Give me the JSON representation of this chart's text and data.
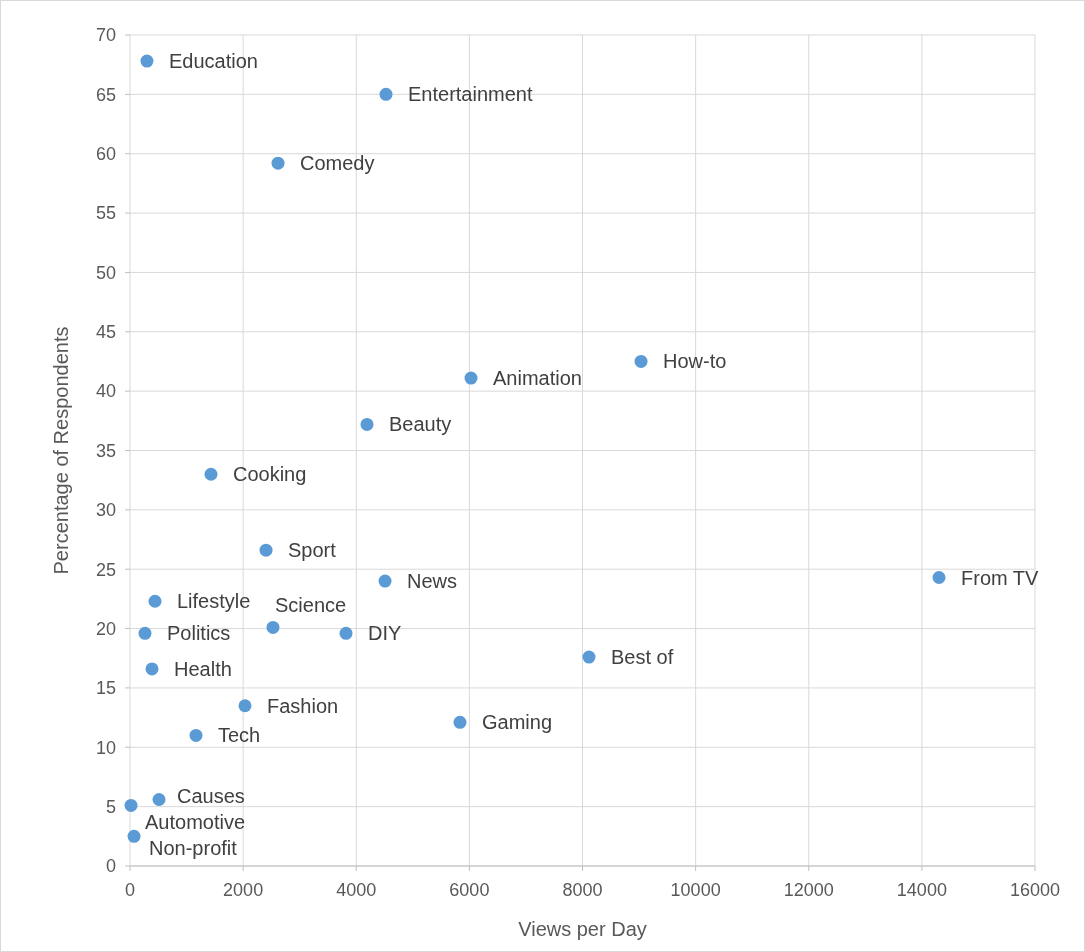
{
  "chart_data": {
    "type": "scatter",
    "xlabel": "Views per Day",
    "ylabel": "Percentage of Respondents",
    "x": [
      300,
      4526,
      2617,
      9035,
      6029,
      4190,
      1432,
      2405,
      4509,
      14303,
      442,
      2528,
      3819,
      265,
      389,
      8115,
      2033,
      5834,
      1167,
      513,
      18,
      71
    ],
    "series": [
      {
        "color": "#5b9bd5",
        "values": [
          67.8,
          65.0,
          59.2,
          42.5,
          41.1,
          37.2,
          33.0,
          26.6,
          24.0,
          24.3,
          22.3,
          20.1,
          19.6,
          19.6,
          16.6,
          17.6,
          13.5,
          12.1,
          11.0,
          5.6,
          5.1,
          2.5
        ]
      }
    ],
    "annotations": [
      {
        "text": "Education",
        "x": 300,
        "y": 67.8
      },
      {
        "text": "Entertainment",
        "x": 4526,
        "y": 65.0
      },
      {
        "text": "Comedy",
        "x": 2617,
        "y": 59.2
      },
      {
        "text": "How-to",
        "x": 9035,
        "y": 42.5
      },
      {
        "text": "Animation",
        "x": 6029,
        "y": 41.1
      },
      {
        "text": "Beauty",
        "x": 4190,
        "y": 37.2
      },
      {
        "text": "Cooking",
        "x": 1432,
        "y": 33.0
      },
      {
        "text": "Sport",
        "x": 2405,
        "y": 26.6
      },
      {
        "text": "News",
        "x": 4509,
        "y": 24.0
      },
      {
        "text": "From TV",
        "x": 14303,
        "y": 24.3
      },
      {
        "text": "Lifestyle",
        "x": 442,
        "y": 22.3
      },
      {
        "text": "Science",
        "x": 2528,
        "y": 20.1
      },
      {
        "text": "DIY",
        "x": 3819,
        "y": 19.6
      },
      {
        "text": "Politics",
        "x": 265,
        "y": 19.6
      },
      {
        "text": "Health",
        "x": 389,
        "y": 16.6
      },
      {
        "text": "Best of",
        "x": 8115,
        "y": 17.6
      },
      {
        "text": "Fashion",
        "x": 2033,
        "y": 13.5
      },
      {
        "text": "Gaming",
        "x": 5834,
        "y": 12.1
      },
      {
        "text": "Tech",
        "x": 1167,
        "y": 11.0
      },
      {
        "text": "Causes",
        "x": 513,
        "y": 5.6
      },
      {
        "text": "Automotive",
        "x": 18,
        "y": 5.1
      },
      {
        "text": "Non-profit",
        "x": 71,
        "y": 2.5
      }
    ],
    "xlim": [
      0,
      16000
    ],
    "xticks": [
      0,
      2000,
      4000,
      6000,
      8000,
      10000,
      12000,
      14000,
      16000
    ],
    "ylim": [
      0,
      70
    ],
    "yticks": [
      0,
      5,
      10,
      15,
      20,
      25,
      30,
      35,
      40,
      45,
      50,
      55,
      60,
      65,
      70
    ],
    "grid": true,
    "marker": "circle"
  }
}
